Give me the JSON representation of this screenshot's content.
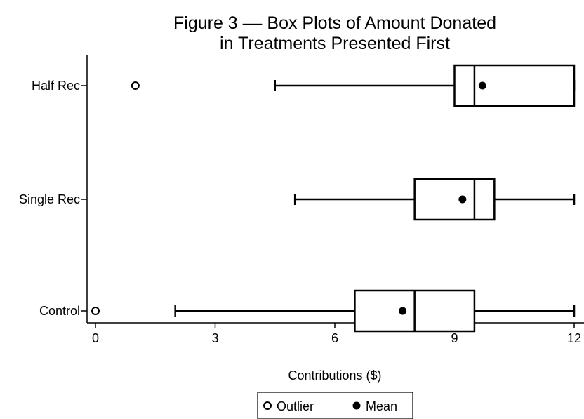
{
  "chart_data": {
    "type": "boxplot",
    "title_lines": [
      "Figure 3 –– Box Plots of Amount Donated",
      "in Treatments Presented First"
    ],
    "xlabel": "Contributions ($)",
    "ylabel": "",
    "xlim": [
      0,
      12
    ],
    "xticks": [
      0,
      3,
      6,
      9,
      12
    ],
    "orientation": "horizontal",
    "grid": false,
    "legend_position": "bottom-center",
    "legend": {
      "outlier_label": "Outlier",
      "mean_label": "Mean"
    },
    "categories": [
      "Half Rec",
      "Single Rec",
      "Control"
    ],
    "series": [
      {
        "name": "Half Rec",
        "whisker_low": 4.5,
        "q1": 9,
        "median": 9.5,
        "q3": 12,
        "whisker_high": 12,
        "mean": 9.7,
        "outliers": [
          1
        ]
      },
      {
        "name": "Single Rec",
        "whisker_low": 5,
        "q1": 8,
        "median": 9.5,
        "q3": 10,
        "whisker_high": 12,
        "mean": 9.2,
        "outliers": []
      },
      {
        "name": "Control",
        "whisker_low": 2,
        "q1": 6.5,
        "median": 8,
        "q3": 9.5,
        "whisker_high": 12,
        "mean": 7.7,
        "outliers": [
          0
        ]
      }
    ]
  }
}
